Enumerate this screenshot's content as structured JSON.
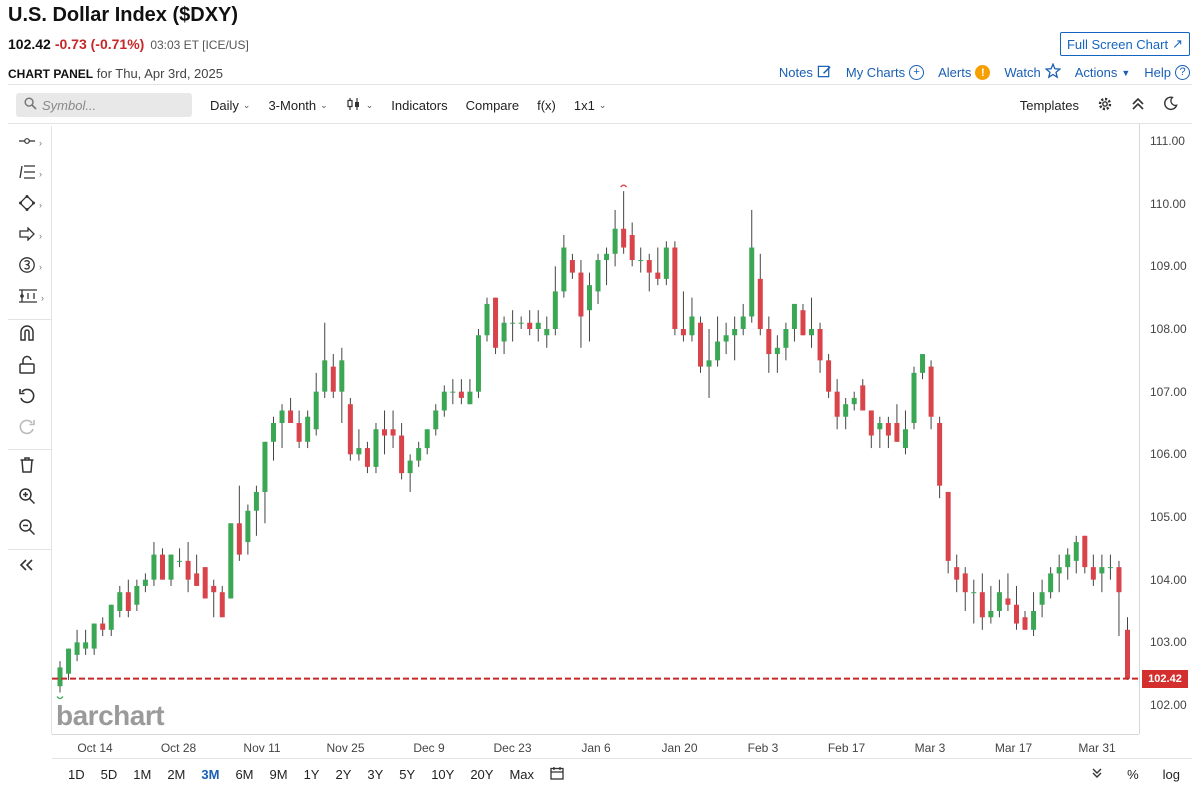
{
  "header": {
    "title": "U.S. Dollar Index ($DXY)",
    "price": "102.42",
    "change": "-0.73 (-0.71%)",
    "meta": "03:03 ET [ICE/US]",
    "fullscreen_label": "Full Screen Chart"
  },
  "panel": {
    "label": "CHART PANEL",
    "date_text": "for Thu, Apr 3rd, 2025"
  },
  "top_links": {
    "notes": "Notes",
    "my_charts": "My Charts",
    "alerts": "Alerts",
    "watch": "Watch",
    "actions": "Actions",
    "help": "Help"
  },
  "toolbar": {
    "symbol_placeholder": "Symbol...",
    "interval": "Daily",
    "range": "3-Month",
    "indicators": "Indicators",
    "compare": "Compare",
    "fx": "f(x)",
    "layout": "1x1",
    "templates": "Templates"
  },
  "watermark": "barchart",
  "bottom_bar": {
    "ranges": [
      "1D",
      "5D",
      "1M",
      "2M",
      "3M",
      "6M",
      "9M",
      "1Y",
      "2Y",
      "3Y",
      "5Y",
      "10Y",
      "20Y",
      "Max"
    ],
    "active_range": "3M",
    "percent": "%",
    "log": "log"
  },
  "colors": {
    "up": "#3ba755",
    "down": "#d9434a",
    "price_line": "#c62828",
    "link": "#1a5fb4"
  },
  "chart_data": {
    "type": "candlestick",
    "symbol": "$DXY",
    "ylim": [
      101.6,
      111.3
    ],
    "y_ticks": [
      "111.00",
      "110.00",
      "109.00",
      "108.00",
      "107.00",
      "106.00",
      "105.00",
      "104.00",
      "103.00",
      "102.00"
    ],
    "x_ticks": [
      "Oct 14",
      "Oct 28",
      "Nov 11",
      "Nov 25",
      "Dec 9",
      "Dec 23",
      "Jan 6",
      "Jan 20",
      "Feb 3",
      "Feb 17",
      "Mar 3",
      "Mar 17",
      "Mar 31"
    ],
    "last_price": "102.42",
    "candles": [
      {
        "o": 102.3,
        "h": 102.7,
        "l": 102.2,
        "c": 102.6
      },
      {
        "o": 102.5,
        "h": 102.9,
        "l": 102.4,
        "c": 102.9
      },
      {
        "o": 102.8,
        "h": 103.2,
        "l": 102.7,
        "c": 103.0
      },
      {
        "o": 102.9,
        "h": 103.2,
        "l": 102.8,
        "c": 103.0
      },
      {
        "o": 102.9,
        "h": 103.3,
        "l": 102.8,
        "c": 103.3
      },
      {
        "o": 103.3,
        "h": 103.4,
        "l": 103.1,
        "c": 103.2
      },
      {
        "o": 103.2,
        "h": 103.6,
        "l": 103.1,
        "c": 103.6
      },
      {
        "o": 103.5,
        "h": 103.9,
        "l": 103.4,
        "c": 103.8
      },
      {
        "o": 103.8,
        "h": 104.0,
        "l": 103.4,
        "c": 103.5
      },
      {
        "o": 103.6,
        "h": 104.0,
        "l": 103.5,
        "c": 103.9
      },
      {
        "o": 103.9,
        "h": 104.1,
        "l": 103.8,
        "c": 104.0
      },
      {
        "o": 104.0,
        "h": 104.6,
        "l": 103.9,
        "c": 104.4
      },
      {
        "o": 104.4,
        "h": 104.5,
        "l": 104.0,
        "c": 104.0
      },
      {
        "o": 104.0,
        "h": 104.4,
        "l": 103.9,
        "c": 104.4
      },
      {
        "o": 104.3,
        "h": 104.5,
        "l": 104.2,
        "c": 104.3
      },
      {
        "o": 104.3,
        "h": 104.6,
        "l": 103.8,
        "c": 104.0
      },
      {
        "o": 104.1,
        "h": 104.4,
        "l": 103.9,
        "c": 103.9
      },
      {
        "o": 104.2,
        "h": 104.2,
        "l": 103.7,
        "c": 103.7
      },
      {
        "o": 103.9,
        "h": 104.0,
        "l": 103.4,
        "c": 103.8
      },
      {
        "o": 103.8,
        "h": 103.9,
        "l": 103.4,
        "c": 103.4
      },
      {
        "o": 103.7,
        "h": 104.9,
        "l": 103.7,
        "c": 104.9
      },
      {
        "o": 104.9,
        "h": 105.5,
        "l": 104.3,
        "c": 104.4
      },
      {
        "o": 104.6,
        "h": 105.2,
        "l": 104.4,
        "c": 105.1
      },
      {
        "o": 105.1,
        "h": 105.5,
        "l": 104.7,
        "c": 105.4
      },
      {
        "o": 105.4,
        "h": 106.2,
        "l": 104.9,
        "c": 106.2
      },
      {
        "o": 106.2,
        "h": 106.6,
        "l": 105.9,
        "c": 106.5
      },
      {
        "o": 106.5,
        "h": 106.8,
        "l": 106.1,
        "c": 106.7
      },
      {
        "o": 106.7,
        "h": 106.9,
        "l": 106.5,
        "c": 106.5
      },
      {
        "o": 106.5,
        "h": 106.7,
        "l": 106.1,
        "c": 106.2
      },
      {
        "o": 106.2,
        "h": 106.7,
        "l": 106.1,
        "c": 106.6
      },
      {
        "o": 106.4,
        "h": 107.3,
        "l": 106.3,
        "c": 107.0
      },
      {
        "o": 107.0,
        "h": 108.1,
        "l": 106.9,
        "c": 107.5
      },
      {
        "o": 107.4,
        "h": 107.6,
        "l": 106.9,
        "c": 107.0
      },
      {
        "o": 107.0,
        "h": 107.7,
        "l": 106.5,
        "c": 107.5
      },
      {
        "o": 106.8,
        "h": 106.9,
        "l": 105.9,
        "c": 106.0
      },
      {
        "o": 106.0,
        "h": 106.4,
        "l": 105.9,
        "c": 106.1
      },
      {
        "o": 106.1,
        "h": 106.2,
        "l": 105.7,
        "c": 105.8
      },
      {
        "o": 105.8,
        "h": 106.5,
        "l": 105.7,
        "c": 106.4
      },
      {
        "o": 106.4,
        "h": 106.7,
        "l": 106.0,
        "c": 106.3
      },
      {
        "o": 106.4,
        "h": 106.7,
        "l": 106.1,
        "c": 106.3
      },
      {
        "o": 106.3,
        "h": 106.5,
        "l": 105.6,
        "c": 105.7
      },
      {
        "o": 105.7,
        "h": 106.0,
        "l": 105.4,
        "c": 105.9
      },
      {
        "o": 105.9,
        "h": 106.2,
        "l": 105.8,
        "c": 106.1
      },
      {
        "o": 106.1,
        "h": 106.4,
        "l": 106.0,
        "c": 106.4
      },
      {
        "o": 106.4,
        "h": 106.8,
        "l": 106.3,
        "c": 106.7
      },
      {
        "o": 106.7,
        "h": 107.1,
        "l": 106.6,
        "c": 107.0
      },
      {
        "o": 107.0,
        "h": 107.2,
        "l": 106.8,
        "c": 107.0
      },
      {
        "o": 107.0,
        "h": 107.2,
        "l": 106.8,
        "c": 106.9
      },
      {
        "o": 106.8,
        "h": 107.2,
        "l": 106.8,
        "c": 107.0
      },
      {
        "o": 107.0,
        "h": 108.0,
        "l": 106.9,
        "c": 107.9
      },
      {
        "o": 107.9,
        "h": 108.5,
        "l": 107.8,
        "c": 108.4
      },
      {
        "o": 108.5,
        "h": 108.5,
        "l": 107.6,
        "c": 107.7
      },
      {
        "o": 107.8,
        "h": 108.2,
        "l": 107.6,
        "c": 108.1
      },
      {
        "o": 108.1,
        "h": 108.3,
        "l": 107.8,
        "c": 108.1
      },
      {
        "o": 108.1,
        "h": 108.2,
        "l": 108.0,
        "c": 108.1
      },
      {
        "o": 108.1,
        "h": 108.3,
        "l": 107.9,
        "c": 108.0
      },
      {
        "o": 108.0,
        "h": 108.3,
        "l": 107.8,
        "c": 108.1
      },
      {
        "o": 107.9,
        "h": 108.2,
        "l": 107.7,
        "c": 108.0
      },
      {
        "o": 108.0,
        "h": 109.0,
        "l": 107.9,
        "c": 108.6
      },
      {
        "o": 108.6,
        "h": 109.5,
        "l": 108.5,
        "c": 109.3
      },
      {
        "o": 109.1,
        "h": 109.2,
        "l": 108.8,
        "c": 108.9
      },
      {
        "o": 108.9,
        "h": 109.1,
        "l": 107.7,
        "c": 108.2
      },
      {
        "o": 108.3,
        "h": 108.9,
        "l": 107.8,
        "c": 108.7
      },
      {
        "o": 108.6,
        "h": 109.2,
        "l": 108.4,
        "c": 109.1
      },
      {
        "o": 109.1,
        "h": 109.3,
        "l": 108.7,
        "c": 109.2
      },
      {
        "o": 109.2,
        "h": 109.9,
        "l": 109.0,
        "c": 109.6
      },
      {
        "o": 109.6,
        "h": 110.2,
        "l": 109.2,
        "c": 109.3
      },
      {
        "o": 109.5,
        "h": 109.7,
        "l": 109.0,
        "c": 109.1
      },
      {
        "o": 109.1,
        "h": 109.3,
        "l": 108.9,
        "c": 109.1
      },
      {
        "o": 109.1,
        "h": 109.2,
        "l": 108.6,
        "c": 108.9
      },
      {
        "o": 108.9,
        "h": 109.3,
        "l": 108.7,
        "c": 108.8
      },
      {
        "o": 108.8,
        "h": 109.4,
        "l": 108.7,
        "c": 109.3
      },
      {
        "o": 109.3,
        "h": 109.4,
        "l": 107.9,
        "c": 108.0
      },
      {
        "o": 108.0,
        "h": 108.6,
        "l": 107.8,
        "c": 107.9
      },
      {
        "o": 107.9,
        "h": 108.5,
        "l": 107.8,
        "c": 108.2
      },
      {
        "o": 108.1,
        "h": 108.2,
        "l": 107.3,
        "c": 107.4
      },
      {
        "o": 107.4,
        "h": 108.0,
        "l": 106.9,
        "c": 107.5
      },
      {
        "o": 107.5,
        "h": 108.2,
        "l": 107.4,
        "c": 107.8
      },
      {
        "o": 107.8,
        "h": 108.1,
        "l": 107.6,
        "c": 107.9
      },
      {
        "o": 107.9,
        "h": 108.2,
        "l": 107.5,
        "c": 108.0
      },
      {
        "o": 108.0,
        "h": 108.4,
        "l": 107.9,
        "c": 108.2
      },
      {
        "o": 108.2,
        "h": 109.9,
        "l": 108.1,
        "c": 109.3
      },
      {
        "o": 108.8,
        "h": 109.2,
        "l": 107.9,
        "c": 108.0
      },
      {
        "o": 108.0,
        "h": 108.2,
        "l": 107.3,
        "c": 107.6
      },
      {
        "o": 107.6,
        "h": 107.9,
        "l": 107.3,
        "c": 107.7
      },
      {
        "o": 107.7,
        "h": 108.1,
        "l": 107.5,
        "c": 108.0
      },
      {
        "o": 108.0,
        "h": 108.4,
        "l": 107.8,
        "c": 108.4
      },
      {
        "o": 108.3,
        "h": 108.4,
        "l": 107.9,
        "c": 107.9
      },
      {
        "o": 107.9,
        "h": 108.5,
        "l": 107.7,
        "c": 108.0
      },
      {
        "o": 108.0,
        "h": 108.1,
        "l": 107.3,
        "c": 107.5
      },
      {
        "o": 107.5,
        "h": 107.6,
        "l": 106.9,
        "c": 107.0
      },
      {
        "o": 107.0,
        "h": 107.2,
        "l": 106.4,
        "c": 106.6
      },
      {
        "o": 106.6,
        "h": 106.9,
        "l": 106.4,
        "c": 106.8
      },
      {
        "o": 106.8,
        "h": 107.0,
        "l": 106.7,
        "c": 106.9
      },
      {
        "o": 107.1,
        "h": 107.2,
        "l": 106.7,
        "c": 106.7
      },
      {
        "o": 106.7,
        "h": 106.7,
        "l": 106.1,
        "c": 106.3
      },
      {
        "o": 106.4,
        "h": 106.6,
        "l": 106.1,
        "c": 106.5
      },
      {
        "o": 106.5,
        "h": 106.6,
        "l": 106.1,
        "c": 106.3
      },
      {
        "o": 106.5,
        "h": 106.8,
        "l": 106.2,
        "c": 106.2
      },
      {
        "o": 106.1,
        "h": 106.7,
        "l": 106.0,
        "c": 106.4
      },
      {
        "o": 106.5,
        "h": 107.4,
        "l": 106.4,
        "c": 107.3
      },
      {
        "o": 107.3,
        "h": 107.6,
        "l": 107.2,
        "c": 107.6
      },
      {
        "o": 107.4,
        "h": 107.5,
        "l": 106.4,
        "c": 106.6
      },
      {
        "o": 106.5,
        "h": 106.6,
        "l": 105.3,
        "c": 105.5
      },
      {
        "o": 105.4,
        "h": 105.4,
        "l": 104.1,
        "c": 104.3
      },
      {
        "o": 104.2,
        "h": 104.4,
        "l": 103.8,
        "c": 104.0
      },
      {
        "o": 104.1,
        "h": 104.2,
        "l": 103.5,
        "c": 103.8
      },
      {
        "o": 103.8,
        "h": 104.0,
        "l": 103.3,
        "c": 103.8
      },
      {
        "o": 103.8,
        "h": 104.1,
        "l": 103.2,
        "c": 103.4
      },
      {
        "o": 103.4,
        "h": 103.9,
        "l": 103.3,
        "c": 103.5
      },
      {
        "o": 103.5,
        "h": 104.0,
        "l": 103.4,
        "c": 103.8
      },
      {
        "o": 103.7,
        "h": 104.1,
        "l": 103.5,
        "c": 103.6
      },
      {
        "o": 103.6,
        "h": 103.9,
        "l": 103.2,
        "c": 103.3
      },
      {
        "o": 103.4,
        "h": 103.5,
        "l": 103.2,
        "c": 103.2
      },
      {
        "o": 103.2,
        "h": 103.8,
        "l": 103.1,
        "c": 103.5
      },
      {
        "o": 103.6,
        "h": 104.0,
        "l": 103.4,
        "c": 103.8
      },
      {
        "o": 103.8,
        "h": 104.2,
        "l": 103.7,
        "c": 104.1
      },
      {
        "o": 104.1,
        "h": 104.4,
        "l": 103.8,
        "c": 104.2
      },
      {
        "o": 104.2,
        "h": 104.5,
        "l": 104.0,
        "c": 104.4
      },
      {
        "o": 104.3,
        "h": 104.7,
        "l": 104.1,
        "c": 104.6
      },
      {
        "o": 104.7,
        "h": 104.7,
        "l": 104.1,
        "c": 104.2
      },
      {
        "o": 104.2,
        "h": 104.4,
        "l": 103.9,
        "c": 104.0
      },
      {
        "o": 104.1,
        "h": 104.4,
        "l": 103.8,
        "c": 104.2
      },
      {
        "o": 104.2,
        "h": 104.4,
        "l": 104.0,
        "c": 104.2
      },
      {
        "o": 104.2,
        "h": 104.3,
        "l": 103.1,
        "c": 103.8
      },
      {
        "o": 103.2,
        "h": 103.4,
        "l": 102.4,
        "c": 102.42
      }
    ]
  }
}
